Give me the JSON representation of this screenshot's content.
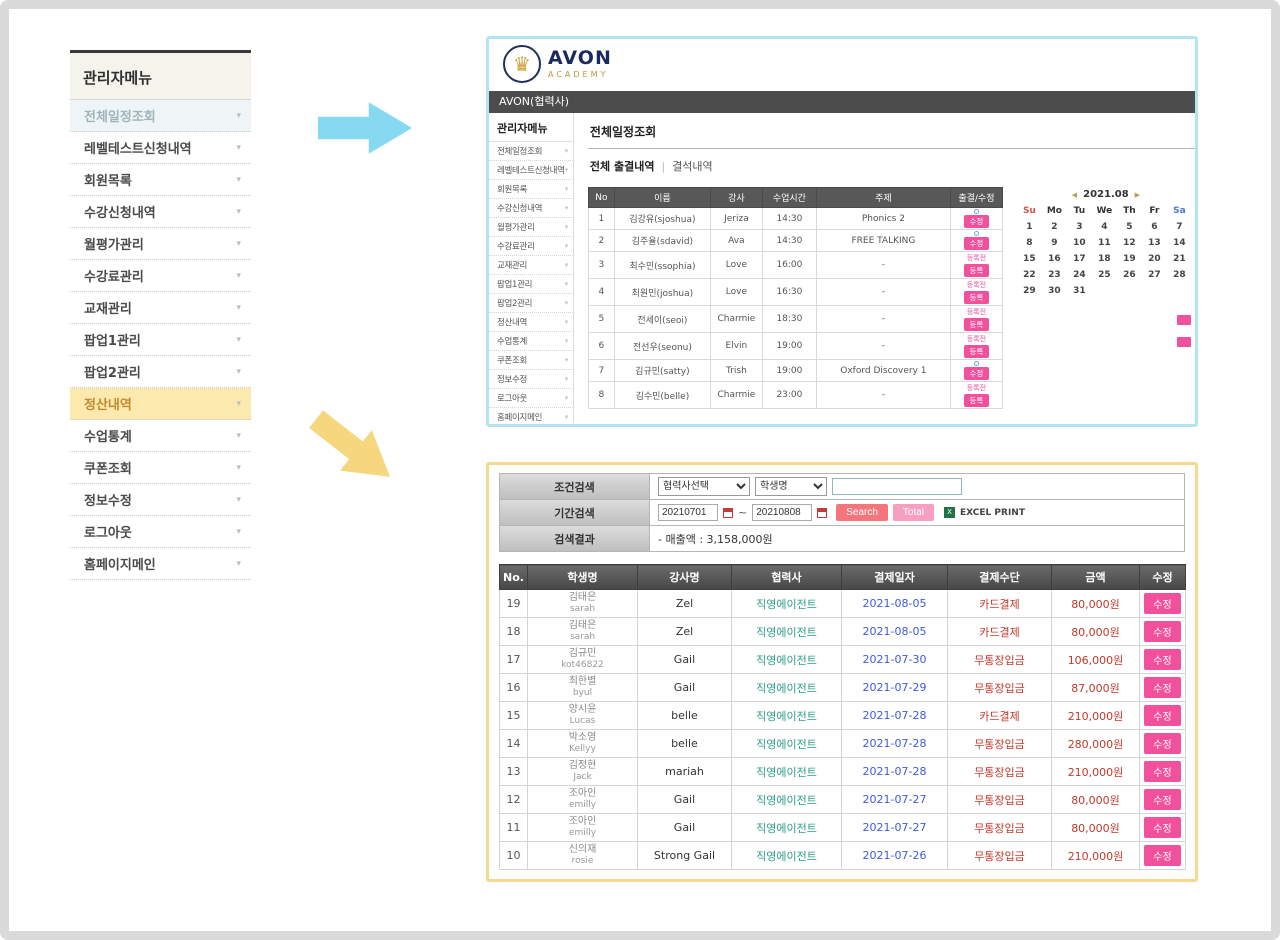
{
  "colors": {
    "accent_pink": "#f0509c",
    "panel_border_cyan": "#b2e4f3",
    "panel_border_yellow": "#f7d88f",
    "partner_teal": "#2d9d8a",
    "date_blue": "#3c5bd6",
    "money_red": "#c0392b"
  },
  "left_menu": {
    "title": "관리자메뉴",
    "items": [
      {
        "label": "전체일정조회",
        "highlight": "blue"
      },
      {
        "label": "레벨테스트신청내역"
      },
      {
        "label": "회원목록"
      },
      {
        "label": "수강신청내역"
      },
      {
        "label": "월평가관리"
      },
      {
        "label": "수강료관리"
      },
      {
        "label": "교재관리"
      },
      {
        "label": "팝업1관리"
      },
      {
        "label": "팝업2관리"
      },
      {
        "label": "정산내역",
        "highlight": "yellow"
      },
      {
        "label": "수업통계"
      },
      {
        "label": "쿠폰조회"
      },
      {
        "label": "정보수정"
      },
      {
        "label": "로그아웃"
      },
      {
        "label": "홈페이지메인"
      }
    ]
  },
  "top_panel": {
    "logo_title": "AVON",
    "logo_subtitle": "ACADEMY",
    "header": "AVON(협력사)",
    "sidebar_title": "관리자메뉴",
    "sidebar_items": [
      "전체일정조회",
      "레벨테스트신청내역",
      "회원목록",
      "수강신청내역",
      "월평가관리",
      "수강료관리",
      "교재관리",
      "팝업1관리",
      "팝업2관리",
      "정산내역",
      "수업통계",
      "쿠폰조회",
      "정보수정",
      "로그아웃",
      "홈페이지메인"
    ],
    "page_title": "전체일정조회",
    "tab_all": "전체 출결내역",
    "tab_absent": "결석내역",
    "attendance_table": {
      "headers": [
        "No",
        "이름",
        "강사",
        "수업시간",
        "주제",
        "출결/수정"
      ],
      "rows": [
        {
          "no": "1",
          "name": "김강유(sjoshua)",
          "teacher": "Jeriza",
          "time": "14:30",
          "topic": "Phonics 2",
          "action": "edit",
          "action_label": "수정"
        },
        {
          "no": "2",
          "name": "김주율(sdavid)",
          "teacher": "Ava",
          "time": "14:30",
          "topic": "FREE TALKING",
          "action": "edit",
          "action_label": "수정"
        },
        {
          "no": "3",
          "name": "최수민(ssophia)",
          "teacher": "Love",
          "time": "16:00",
          "topic": "-",
          "action": "register",
          "pre_label": "등록전",
          "action_label": "등록"
        },
        {
          "no": "4",
          "name": "최원민(joshua)",
          "teacher": "Love",
          "time": "16:30",
          "topic": "-",
          "action": "register",
          "pre_label": "등록전",
          "action_label": "등록"
        },
        {
          "no": "5",
          "name": "전세이(seoi)",
          "teacher": "Charmie",
          "time": "18:30",
          "topic": "-",
          "action": "register",
          "pre_label": "등록전",
          "action_label": "등록"
        },
        {
          "no": "6",
          "name": "전선우(seonu)",
          "teacher": "Elvin",
          "time": "19:00",
          "topic": "-",
          "action": "register",
          "pre_label": "등록전",
          "action_label": "등록"
        },
        {
          "no": "7",
          "name": "김규민(satty)",
          "teacher": "Trish",
          "time": "19:00",
          "topic": "Oxford Discovery 1",
          "action": "edit",
          "action_label": "수정"
        },
        {
          "no": "8",
          "name": "김수민(belle)",
          "teacher": "Charmie",
          "time": "23:00",
          "topic": "-",
          "action": "register",
          "pre_label": "등록전",
          "action_label": "등록"
        }
      ]
    },
    "calendar": {
      "title": "2021.08",
      "days": [
        "Su",
        "Mo",
        "Tu",
        "We",
        "Th",
        "Fr",
        "Sa"
      ],
      "weeks": [
        [
          "1",
          "2",
          "3",
          "4",
          "5",
          "6",
          "7"
        ],
        [
          "8",
          "9",
          "10",
          "11",
          "12",
          "13",
          "14"
        ],
        [
          "15",
          "16",
          "17",
          "18",
          "19",
          "20",
          "21"
        ],
        [
          "22",
          "23",
          "24",
          "25",
          "26",
          "27",
          "28"
        ],
        [
          "29",
          "30",
          "31",
          "",
          "",
          "",
          ""
        ]
      ]
    }
  },
  "bottom_panel": {
    "search": {
      "condition_label": "조건검색",
      "partner_select": "협력사선택",
      "student_select": "학생명",
      "keyword_value": "",
      "period_label": "기간검색",
      "date_from": "20210701",
      "date_to": "20210808",
      "search_button": "Search",
      "total_button": "Total",
      "excel_label": "EXCEL PRINT",
      "result_label": "검색결과",
      "result_text": "- 매출액 : 3,158,000원"
    },
    "payment_table": {
      "headers": [
        "No.",
        "학생명",
        "강사명",
        "협력사",
        "결제일자",
        "결제수단",
        "금액",
        "수정"
      ],
      "edit_label": "수정",
      "rows": [
        {
          "no": "19",
          "student_kr": "김태은",
          "student_en": "sarah",
          "teacher": "Zel",
          "partner": "직영에이전트",
          "date": "2021-08-05",
          "method": "카드결제",
          "amount": "80,000원",
          "action_label": "수정"
        },
        {
          "no": "18",
          "student_kr": "김태은",
          "student_en": "sarah",
          "teacher": "Zel",
          "partner": "직영에이전트",
          "date": "2021-08-05",
          "method": "카드결제",
          "amount": "80,000원",
          "action_label": "수정"
        },
        {
          "no": "17",
          "student_kr": "김규민",
          "student_en": "kot46822",
          "teacher": "Gail",
          "partner": "직영에이전트",
          "date": "2021-07-30",
          "method": "무통장입금",
          "amount": "106,000원",
          "action_label": "수정"
        },
        {
          "no": "16",
          "student_kr": "최한별",
          "student_en": "byul",
          "teacher": "Gail",
          "partner": "직영에이전트",
          "date": "2021-07-29",
          "method": "무통장입금",
          "amount": "87,000원",
          "action_label": "수정"
        },
        {
          "no": "15",
          "student_kr": "양시윤",
          "student_en": "Lucas",
          "teacher": "belle",
          "partner": "직영에이전트",
          "date": "2021-07-28",
          "method": "카드결제",
          "amount": "210,000원",
          "action_label": "수정"
        },
        {
          "no": "14",
          "student_kr": "박소영",
          "student_en": "Kellyy",
          "teacher": "belle",
          "partner": "직영에이전트",
          "date": "2021-07-28",
          "method": "무통장입금",
          "amount": "280,000원",
          "action_label": "수정"
        },
        {
          "no": "13",
          "student_kr": "김정현",
          "student_en": "Jack",
          "teacher": "mariah",
          "partner": "직영에이전트",
          "date": "2021-07-28",
          "method": "무통장입금",
          "amount": "210,000원",
          "action_label": "수정"
        },
        {
          "no": "12",
          "student_kr": "조아인",
          "student_en": "emilly",
          "teacher": "Gail",
          "partner": "직영에이전트",
          "date": "2021-07-27",
          "method": "무통장입금",
          "amount": "80,000원",
          "action_label": "수정"
        },
        {
          "no": "11",
          "student_kr": "조아인",
          "student_en": "emilly",
          "teacher": "Gail",
          "partner": "직영에이전트",
          "date": "2021-07-27",
          "method": "무통장입금",
          "amount": "80,000원",
          "action_label": "수정"
        },
        {
          "no": "10",
          "student_kr": "신의재",
          "student_en": "rosie",
          "teacher": "Strong Gail",
          "partner": "직영에이전트",
          "date": "2021-07-26",
          "method": "무통장입금",
          "amount": "210,000원",
          "action_label": "수정"
        }
      ]
    }
  }
}
